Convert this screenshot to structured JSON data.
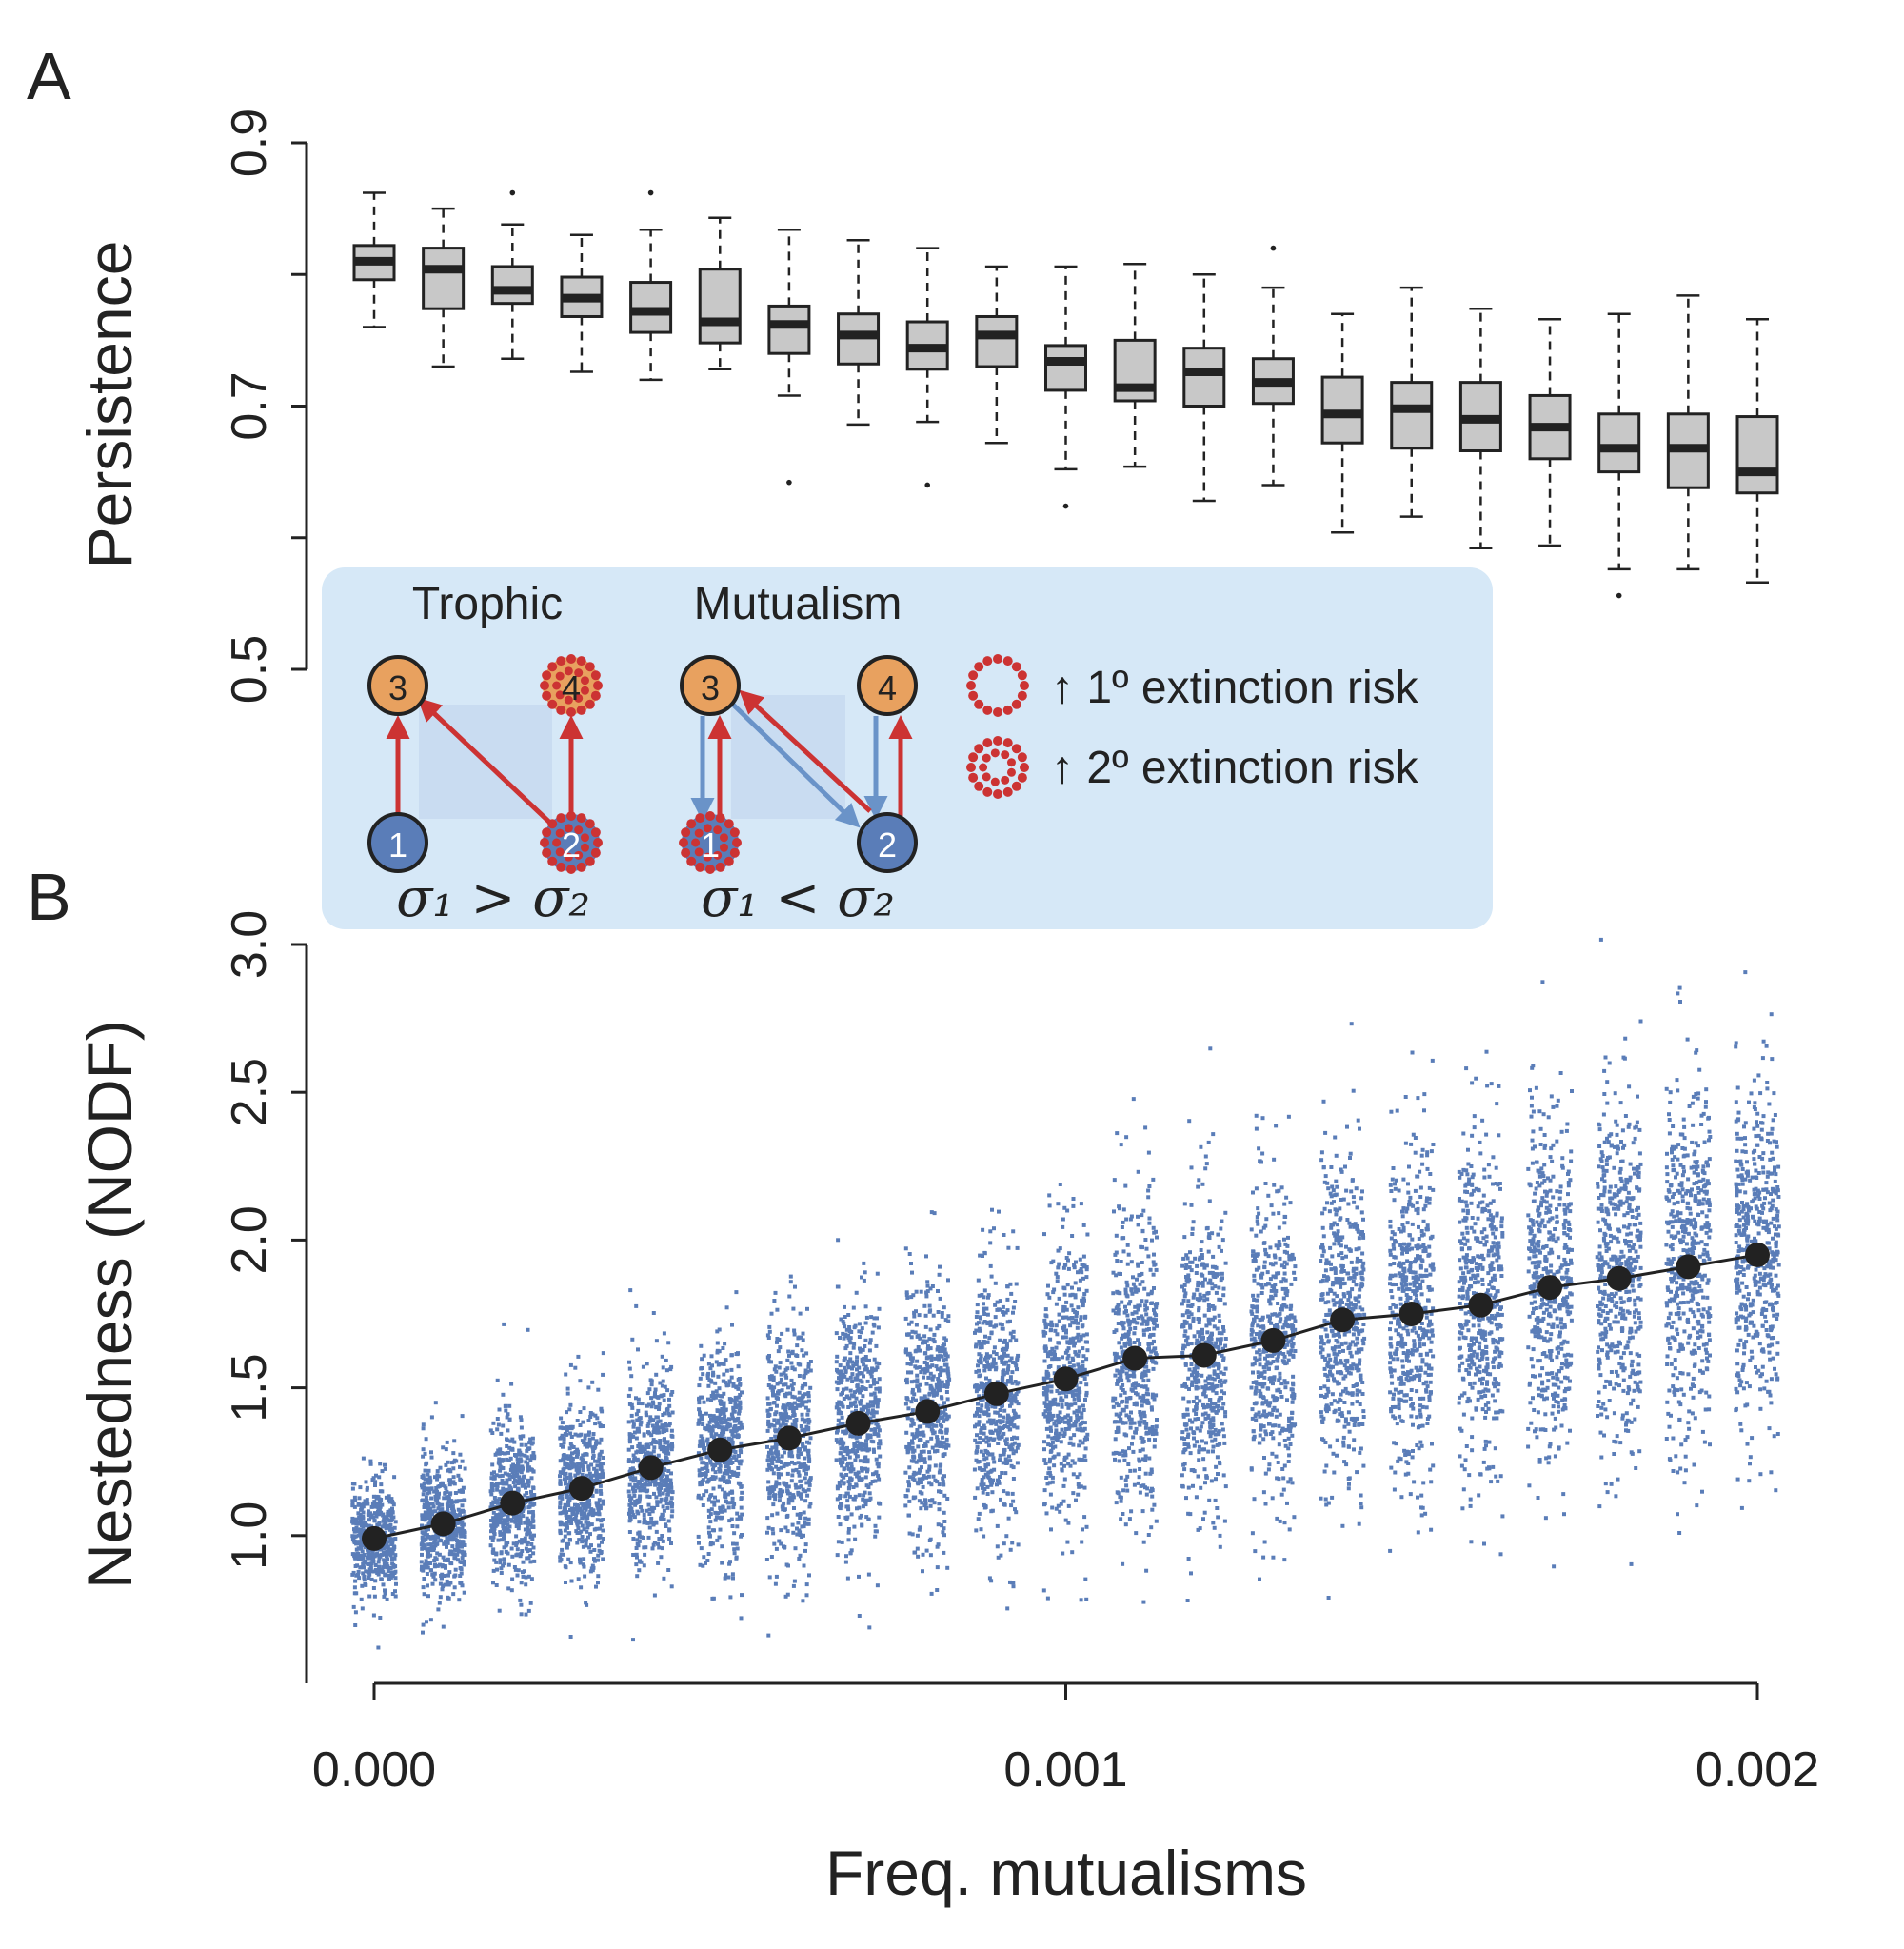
{
  "panel_a_letter": "A",
  "panel_b_letter": "B",
  "chart_data": [
    {
      "type": "box",
      "panel": "A",
      "ylabel": "Persistence",
      "ylim": [
        0.5,
        0.9
      ],
      "yticks": [
        0.5,
        0.6,
        0.7,
        0.8,
        0.9
      ],
      "ytick_labels": [
        "0.5",
        "",
        "0.7",
        "",
        "0.9"
      ],
      "x": [
        0.0,
        0.0001,
        0.0002,
        0.0003,
        0.0004,
        0.0005,
        0.0006,
        0.0007,
        0.0008,
        0.0009,
        0.001,
        0.0011,
        0.0012,
        0.0013,
        0.0014,
        0.0015,
        0.0016,
        0.0017,
        0.0018,
        0.0019,
        0.002
      ],
      "boxes": [
        {
          "whislo": 0.76,
          "q1": 0.796,
          "med": 0.81,
          "q3": 0.822,
          "whishi": 0.862,
          "fliers": []
        },
        {
          "whislo": 0.73,
          "q1": 0.774,
          "med": 0.804,
          "q3": 0.82,
          "whishi": 0.85,
          "fliers": []
        },
        {
          "whislo": 0.736,
          "q1": 0.778,
          "med": 0.788,
          "q3": 0.806,
          "whishi": 0.838,
          "fliers": [
            0.862
          ]
        },
        {
          "whislo": 0.726,
          "q1": 0.768,
          "med": 0.782,
          "q3": 0.798,
          "whishi": 0.83,
          "fliers": []
        },
        {
          "whislo": 0.72,
          "q1": 0.756,
          "med": 0.772,
          "q3": 0.794,
          "whishi": 0.834,
          "fliers": [
            0.862
          ]
        },
        {
          "whislo": 0.728,
          "q1": 0.748,
          "med": 0.764,
          "q3": 0.804,
          "whishi": 0.843,
          "fliers": []
        },
        {
          "whislo": 0.708,
          "q1": 0.74,
          "med": 0.762,
          "q3": 0.776,
          "whishi": 0.834,
          "fliers": [
            0.642
          ]
        },
        {
          "whislo": 0.686,
          "q1": 0.732,
          "med": 0.754,
          "q3": 0.77,
          "whishi": 0.826,
          "fliers": []
        },
        {
          "whislo": 0.688,
          "q1": 0.728,
          "med": 0.744,
          "q3": 0.764,
          "whishi": 0.82,
          "fliers": [
            0.64
          ]
        },
        {
          "whislo": 0.672,
          "q1": 0.73,
          "med": 0.754,
          "q3": 0.768,
          "whishi": 0.806,
          "fliers": []
        },
        {
          "whislo": 0.652,
          "q1": 0.712,
          "med": 0.734,
          "q3": 0.746,
          "whishi": 0.806,
          "fliers": [
            0.624
          ]
        },
        {
          "whislo": 0.654,
          "q1": 0.704,
          "med": 0.714,
          "q3": 0.75,
          "whishi": 0.808,
          "fliers": []
        },
        {
          "whislo": 0.628,
          "q1": 0.7,
          "med": 0.726,
          "q3": 0.744,
          "whishi": 0.8,
          "fliers": []
        },
        {
          "whislo": 0.64,
          "q1": 0.702,
          "med": 0.718,
          "q3": 0.736,
          "whishi": 0.79,
          "fliers": [
            0.82
          ]
        },
        {
          "whislo": 0.604,
          "q1": 0.672,
          "med": 0.694,
          "q3": 0.722,
          "whishi": 0.77,
          "fliers": []
        },
        {
          "whislo": 0.616,
          "q1": 0.668,
          "med": 0.698,
          "q3": 0.718,
          "whishi": 0.79,
          "fliers": []
        },
        {
          "whislo": 0.592,
          "q1": 0.666,
          "med": 0.69,
          "q3": 0.718,
          "whishi": 0.774,
          "fliers": []
        },
        {
          "whislo": 0.594,
          "q1": 0.66,
          "med": 0.684,
          "q3": 0.708,
          "whishi": 0.766,
          "fliers": []
        },
        {
          "whislo": 0.576,
          "q1": 0.65,
          "med": 0.668,
          "q3": 0.694,
          "whishi": 0.77,
          "fliers": [
            0.556
          ]
        },
        {
          "whislo": 0.576,
          "q1": 0.638,
          "med": 0.668,
          "q3": 0.694,
          "whishi": 0.784,
          "fliers": []
        },
        {
          "whislo": 0.566,
          "q1": 0.634,
          "med": 0.65,
          "q3": 0.692,
          "whishi": 0.766,
          "fliers": []
        }
      ]
    },
    {
      "type": "scatter",
      "panel": "B",
      "ylabel": "Nestedness (NODF)",
      "xlabel": "Freq. mutualisms",
      "ylim": [
        0.5,
        3.0
      ],
      "yticks": [
        1.0,
        1.5,
        2.0,
        2.5,
        3.0
      ],
      "ytick_labels": [
        "1.0",
        "1.5",
        "2.0",
        "2.5",
        "3.0"
      ],
      "xlim": [
        -0.0001,
        0.0021
      ],
      "xticks": [
        0.0,
        0.001,
        0.002
      ],
      "xtick_labels": [
        "0.000",
        "0.001",
        "0.002"
      ],
      "x": [
        0.0,
        0.0001,
        0.0002,
        0.0003,
        0.0004,
        0.0005,
        0.0006,
        0.0007,
        0.0008,
        0.0009,
        0.001,
        0.0011,
        0.0012,
        0.0013,
        0.0014,
        0.0015,
        0.0016,
        0.0017,
        0.0018,
        0.0019,
        0.002
      ],
      "mean_line": [
        0.99,
        1.04,
        1.11,
        1.16,
        1.23,
        1.29,
        1.33,
        1.38,
        1.42,
        1.48,
        1.53,
        1.6,
        1.61,
        1.66,
        1.73,
        1.75,
        1.78,
        1.84,
        1.87,
        1.91,
        1.95
      ],
      "spread_sd": [
        0.09,
        0.12,
        0.14,
        0.15,
        0.17,
        0.19,
        0.2,
        0.21,
        0.22,
        0.23,
        0.24,
        0.26,
        0.26,
        0.27,
        0.28,
        0.29,
        0.3,
        0.3,
        0.31,
        0.31,
        0.32
      ],
      "points_per_group": 500,
      "series_color": "#5a7db8",
      "line_color": "#222222"
    }
  ],
  "inset": {
    "title_trophic": "Trophic",
    "title_mutualism": "Mutualism",
    "nodes": {
      "n1": "1",
      "n2": "2",
      "n3": "3",
      "n4": "4"
    },
    "sigma_left": "σ₁ > σ₂",
    "sigma_right": "σ₁ < σ₂",
    "legend_primary": "↑ 1º extinction risk",
    "legend_secondary": "↑ 2º extinction risk",
    "colors": {
      "background": "#d6e8f7",
      "orange": "#e8a15f",
      "blue": "#5a7db8",
      "red": "#cc3333",
      "arrow_blue": "#6a93c8"
    }
  }
}
